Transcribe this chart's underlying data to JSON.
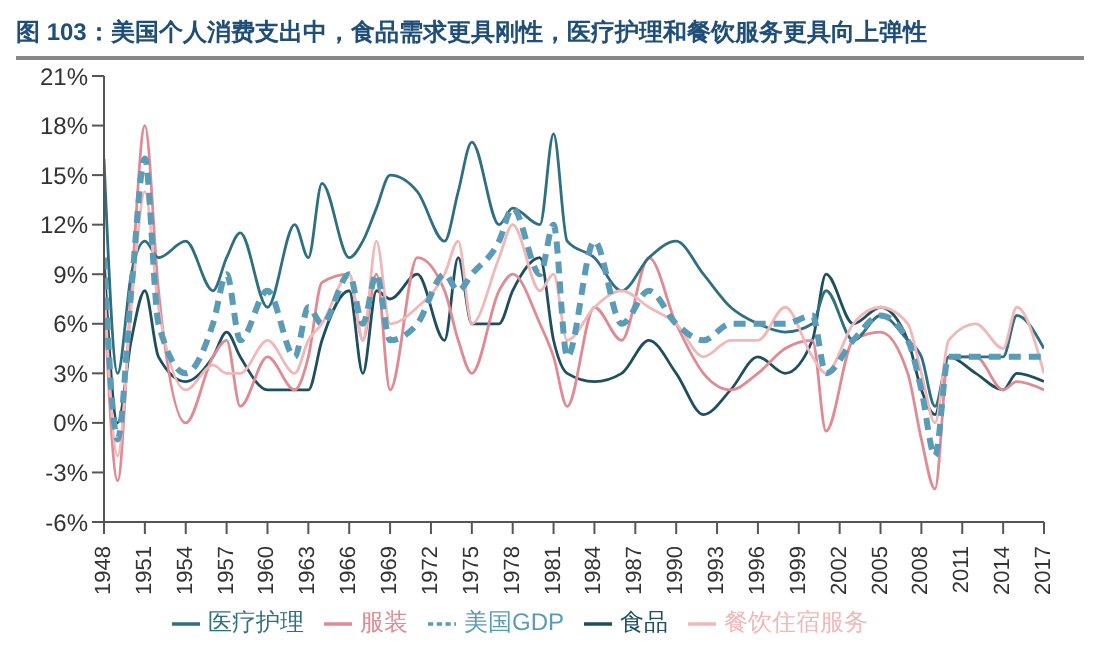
{
  "chart_data": {
    "type": "line",
    "title": "图 103：美国个人消费支出中，食品需求更具刚性，医疗护理和餐饮服务更具向上弹性",
    "x": [
      1948,
      1949,
      1950,
      1951,
      1952,
      1954,
      1956,
      1957,
      1958,
      1960,
      1962,
      1963,
      1964,
      1966,
      1967,
      1968,
      1969,
      1971,
      1973,
      1974,
      1975,
      1977,
      1978,
      1980,
      1981,
      1982,
      1984,
      1986,
      1988,
      1990,
      1992,
      1994,
      1996,
      1998,
      2000,
      2001,
      2003,
      2005,
      2007,
      2008,
      2009,
      2010,
      2012,
      2014,
      2015,
      2017
    ],
    "series": [
      {
        "name": "食品",
        "color": "#1f4e5f",
        "values": [
          10,
          0,
          5,
          8,
          4,
          2.5,
          4,
          5.5,
          4,
          2,
          2,
          2,
          5,
          8,
          3,
          8,
          7.5,
          9,
          5,
          10,
          6,
          6,
          8,
          10,
          5,
          3,
          2.5,
          3,
          5,
          3,
          0.5,
          2,
          4,
          3,
          5,
          9,
          6,
          7,
          5,
          2,
          0.5,
          4,
          3,
          2,
          3,
          2.5
        ]
      },
      {
        "name": "服装",
        "color": "#e08a94",
        "values": [
          8,
          -3.5,
          8,
          18,
          8,
          0,
          4,
          5,
          1,
          4,
          2,
          4,
          8.5,
          9,
          5,
          9,
          2,
          10,
          8,
          5,
          3,
          8,
          9,
          6,
          4,
          1,
          7,
          5,
          10,
          6,
          3,
          2,
          3,
          4.5,
          5,
          -0.5,
          5,
          5.5,
          3,
          -1,
          -4,
          4,
          4,
          2,
          2.5,
          2
        ]
      },
      {
        "name": "医疗护理",
        "color": "#2e6f80",
        "values": [
          16,
          3,
          9,
          11,
          10,
          11,
          8,
          10,
          11.5,
          7,
          12,
          10,
          14.5,
          10,
          11,
          13,
          15,
          14,
          11,
          14,
          17,
          12,
          13,
          12,
          17.5,
          11,
          10,
          8,
          10,
          11,
          9,
          7,
          6,
          5.5,
          6,
          8,
          5,
          6.5,
          5,
          4,
          1,
          4,
          4,
          4,
          6.5,
          4.5
        ]
      },
      {
        "name": "餐饮住宿服务",
        "color": "#f0b8b8",
        "values": [
          8.5,
          -2,
          7,
          14,
          7,
          2,
          3.5,
          3,
          3,
          5,
          3,
          5,
          6,
          9,
          5,
          11,
          6,
          7,
          9,
          11,
          6,
          10,
          12,
          8,
          9,
          5,
          7,
          8,
          7,
          6,
          4,
          5,
          5,
          7,
          4,
          3,
          6,
          7,
          6,
          3,
          0,
          5,
          6,
          4.5,
          7,
          3
        ]
      },
      {
        "name": "美国GDP",
        "color": "#5b9bb5",
        "line_style": "dashed",
        "values": [
          10,
          -1,
          8,
          16,
          6,
          3,
          6,
          9,
          5,
          8,
          4,
          7,
          6,
          9,
          6,
          9,
          5,
          6,
          9,
          8,
          9,
          11,
          13,
          9,
          12,
          4,
          11,
          6,
          8,
          6,
          5,
          6,
          6,
          6,
          6.5,
          3,
          5,
          6.5,
          5,
          2,
          -2,
          4,
          4,
          4,
          4,
          4
        ]
      }
    ],
    "xlim": [
      1948,
      2017
    ],
    "xticks": [
      1948,
      1951,
      1954,
      1957,
      1960,
      1963,
      1966,
      1969,
      1972,
      1975,
      1978,
      1981,
      1984,
      1987,
      1990,
      1993,
      1996,
      1999,
      2002,
      2005,
      2008,
      2011,
      2014,
      2017
    ],
    "ylim": [
      -6,
      21
    ],
    "yticks": [
      {
        "value": -6,
        "label": "-6%"
      },
      {
        "value": -3,
        "label": "-3%"
      },
      {
        "value": 0,
        "label": "0%"
      },
      {
        "value": 3,
        "label": "3%"
      },
      {
        "value": 6,
        "label": "6%"
      },
      {
        "value": 9,
        "label": "9%"
      },
      {
        "value": 12,
        "label": "12%"
      },
      {
        "value": 15,
        "label": "15%"
      },
      {
        "value": 18,
        "label": "18%"
      },
      {
        "value": 21,
        "label": "21%"
      }
    ],
    "grid": false,
    "legend": "bottom",
    "marker": "none",
    "line_style": "solid"
  }
}
